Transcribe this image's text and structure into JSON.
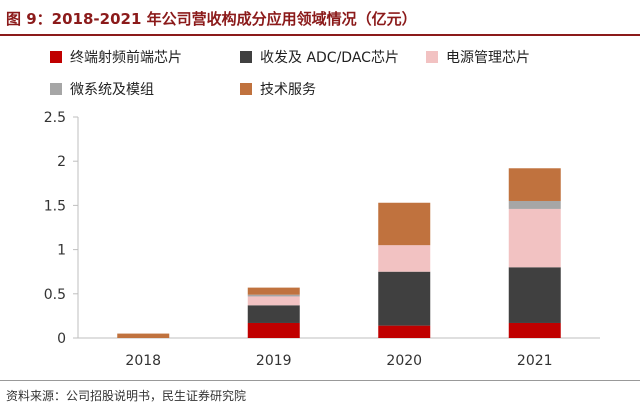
{
  "header": {
    "title": "图 9：2018-2021 年公司营收构成分应用领域情况（亿元）"
  },
  "footer": {
    "source": "资料来源：公司招股说明书，民生证券研究院"
  },
  "colors": {
    "title": "#8B1A1A",
    "axis": "#bfbfbf"
  },
  "chart_data": {
    "type": "bar",
    "stacked": true,
    "title": "",
    "xlabel": "",
    "ylabel": "",
    "categories": [
      "2018",
      "2019",
      "2020",
      "2021"
    ],
    "ylim": [
      0,
      2.5
    ],
    "yticks": [
      "0",
      "0.5",
      "1",
      "1.5",
      "2",
      "2.5"
    ],
    "grid": false,
    "legend_position": "top",
    "series": [
      {
        "name": "终端射频前端芯片",
        "color": "#C00000",
        "values": [
          0.0,
          0.17,
          0.14,
          0.17
        ]
      },
      {
        "name": "收发及 ADC/DAC芯片",
        "color": "#404040",
        "values": [
          0.0,
          0.2,
          0.61,
          0.63
        ]
      },
      {
        "name": "电源管理芯片",
        "color": "#F2C2C2",
        "values": [
          0.0,
          0.1,
          0.3,
          0.66
        ]
      },
      {
        "name": "微系统及模组",
        "color": "#A6A6A6",
        "values": [
          0.0,
          0.02,
          0.0,
          0.09
        ]
      },
      {
        "name": "技术服务",
        "color": "#C0723E",
        "values": [
          0.05,
          0.08,
          0.48,
          0.37
        ]
      }
    ]
  }
}
